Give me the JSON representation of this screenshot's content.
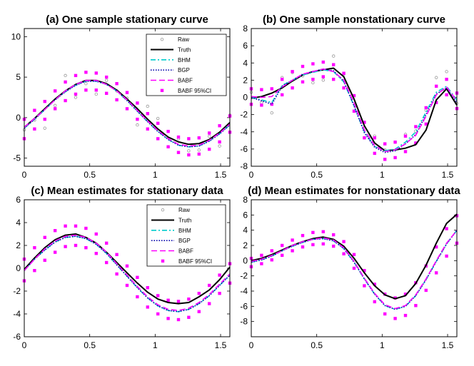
{
  "chart_data": [
    {
      "type": "line",
      "title": "(a) One sample stationary curve",
      "xlabel": "",
      "ylabel": "",
      "xlim": [
        0,
        1.5708
      ],
      "ylim": [
        -6,
        11
      ],
      "xticks": [
        0,
        0.5,
        1,
        1.5
      ],
      "xtick_labels": [
        "0",
        "0.5",
        "1",
        "1.5"
      ],
      "yticks": [
        -5,
        0,
        5,
        10
      ],
      "ytick_labels": [
        "-5",
        "0",
        "5",
        "10"
      ],
      "legend": [
        "Raw",
        "Truth",
        "BHM",
        "BGP",
        "BABF",
        "BABF 95%CI"
      ],
      "x": [
        0,
        0.0785,
        0.157,
        0.2356,
        0.3142,
        0.3927,
        0.4712,
        0.5498,
        0.6283,
        0.7069,
        0.7854,
        0.864,
        0.9425,
        1.021,
        1.0996,
        1.1781,
        1.2566,
        1.3352,
        1.4137,
        1.4923,
        1.5708
      ],
      "series": [
        {
          "name": "Raw",
          "values": [
            -1.5,
            -0.3,
            -1.3,
            1.5,
            5.2,
            2.5,
            4.2,
            2.9,
            4.6,
            3.3,
            2.4,
            -0.9,
            1.4,
            -0.1,
            -3.6,
            -2.6,
            -4.1,
            -4.0,
            -2.3,
            -3.5,
            0.3
          ]
        },
        {
          "name": "Truth",
          "values": [
            -1.2,
            -0.1,
            1.1,
            2.3,
            3.3,
            4.1,
            4.6,
            4.6,
            4.2,
            3.4,
            2.3,
            1.1,
            -0.2,
            -1.4,
            -2.4,
            -3.0,
            -3.3,
            -3.2,
            -2.7,
            -1.8,
            -0.6
          ]
        },
        {
          "name": "BHM",
          "values": [
            -1.3,
            -0.2,
            1.0,
            2.2,
            3.2,
            4.0,
            4.5,
            4.5,
            4.1,
            3.3,
            2.1,
            0.8,
            -0.5,
            -1.7,
            -2.7,
            -3.4,
            -3.6,
            -3.5,
            -2.9,
            -2.0,
            -0.9
          ]
        },
        {
          "name": "BGP",
          "values": [
            -1.3,
            -0.2,
            1.0,
            2.2,
            3.2,
            4.0,
            4.5,
            4.5,
            4.1,
            3.3,
            2.1,
            0.8,
            -0.5,
            -1.7,
            -2.7,
            -3.4,
            -3.6,
            -3.5,
            -2.9,
            -2.0,
            -0.9
          ]
        },
        {
          "name": "BABF",
          "values": [
            -1.2,
            -0.1,
            1.0,
            2.2,
            3.3,
            4.1,
            4.6,
            4.6,
            4.1,
            3.3,
            2.2,
            0.9,
            -0.4,
            -1.6,
            -2.6,
            -3.3,
            -3.5,
            -3.4,
            -2.8,
            -1.9,
            -0.8
          ]
        },
        {
          "name": "BABF 95%CI upper",
          "values": [
            -0.2,
            0.9,
            2.0,
            3.3,
            4.4,
            5.2,
            5.6,
            5.5,
            5.0,
            4.2,
            3.1,
            1.8,
            0.5,
            -0.7,
            -1.7,
            -2.4,
            -2.6,
            -2.5,
            -1.9,
            -1.0,
            0.2
          ]
        },
        {
          "name": "BABF 95%CI lower",
          "values": [
            -2.6,
            -1.4,
            -0.2,
            1.1,
            2.1,
            2.9,
            3.4,
            3.4,
            3.0,
            2.2,
            1.1,
            -0.2,
            -1.4,
            -2.6,
            -3.6,
            -4.3,
            -4.6,
            -4.5,
            -3.9,
            -3.0,
            -1.8
          ]
        }
      ]
    },
    {
      "type": "line",
      "title": "(b) One sample nonstationary curve",
      "xlabel": "",
      "ylabel": "",
      "xlim": [
        0,
        1.5708
      ],
      "ylim": [
        -8,
        8
      ],
      "xticks": [
        0,
        0.5,
        1,
        1.5
      ],
      "xtick_labels": [
        "0",
        "0.5",
        "1",
        "1.5"
      ],
      "yticks": [
        -8,
        -6,
        -4,
        -2,
        0,
        2,
        4,
        6,
        8
      ],
      "ytick_labels": [
        "-8",
        "-6",
        "-4",
        "-2",
        "0",
        "2",
        "4",
        "6",
        "8"
      ],
      "legend": [],
      "x": [
        0,
        0.0785,
        0.157,
        0.2356,
        0.3142,
        0.3927,
        0.4712,
        0.5498,
        0.6283,
        0.7069,
        0.7854,
        0.864,
        0.9425,
        1.021,
        1.0996,
        1.1781,
        1.2566,
        1.3352,
        1.4137,
        1.4923,
        1.5708
      ],
      "series": [
        {
          "name": "Raw",
          "values": [
            0.6,
            -0.6,
            -1.8,
            2.3,
            2.9,
            2.5,
            1.7,
            2.0,
            4.8,
            2.7,
            0.2,
            -4.7,
            -4.5,
            -6.1,
            -5.2,
            -4.3,
            -3.9,
            -1.5,
            2.3,
            3.0,
            -0.7
          ]
        },
        {
          "name": "Truth",
          "values": [
            -0.1,
            0.1,
            0.5,
            1.1,
            1.9,
            2.6,
            3.0,
            3.2,
            3.4,
            2.4,
            -0.2,
            -3.3,
            -5.3,
            -6.2,
            -6.1,
            -5.9,
            -5.5,
            -3.8,
            -0.3,
            1.0,
            -0.9
          ]
        },
        {
          "name": "BHM",
          "values": [
            0.0,
            -0.3,
            -0.6,
            1.4,
            2.0,
            2.6,
            2.9,
            3.2,
            3.0,
            1.8,
            -1.0,
            -4.0,
            -5.7,
            -6.2,
            -6.0,
            -5.2,
            -4.0,
            -1.7,
            0.6,
            1.3,
            -0.3
          ]
        },
        {
          "name": "BGP",
          "values": [
            0.0,
            -0.4,
            -0.8,
            1.3,
            2.0,
            2.7,
            3.0,
            3.3,
            3.1,
            1.9,
            -1.0,
            -4.1,
            -5.8,
            -6.4,
            -6.2,
            -5.4,
            -4.3,
            -2.0,
            0.4,
            1.1,
            -0.6
          ]
        },
        {
          "name": "BABF",
          "values": [
            0.1,
            0.0,
            0.1,
            1.2,
            2.0,
            2.7,
            3.0,
            3.3,
            3.0,
            2.0,
            -0.7,
            -3.8,
            -5.6,
            -6.3,
            -6.1,
            -5.4,
            -4.4,
            -2.2,
            0.3,
            1.2,
            -0.4
          ]
        },
        {
          "name": "BABF 95%CI upper",
          "values": [
            1.0,
            0.9,
            1.0,
            2.1,
            3.0,
            3.6,
            3.9,
            4.1,
            3.8,
            2.8,
            0.2,
            -2.9,
            -4.7,
            -5.4,
            -5.2,
            -4.5,
            -3.4,
            -1.2,
            1.3,
            2.1,
            0.5
          ]
        },
        {
          "name": "BABF 95%CI lower",
          "values": [
            -0.8,
            -0.9,
            -0.8,
            0.3,
            1.1,
            1.8,
            2.1,
            2.4,
            2.1,
            1.1,
            -1.6,
            -4.7,
            -6.5,
            -7.2,
            -7.0,
            -6.3,
            -5.3,
            -3.1,
            -0.6,
            0.3,
            -1.3
          ]
        }
      ]
    },
    {
      "type": "line",
      "title": "(c) Mean estimates for stationary data",
      "xlabel": "",
      "ylabel": "",
      "xlim": [
        0,
        1.5708
      ],
      "ylim": [
        -6,
        6
      ],
      "xticks": [
        0,
        0.5,
        1,
        1.5
      ],
      "xtick_labels": [
        "0",
        "0.5",
        "1",
        "1.5"
      ],
      "yticks": [
        -6,
        -4,
        -2,
        0,
        2,
        4,
        6
      ],
      "ytick_labels": [
        "-6",
        "-4",
        "-2",
        "0",
        "2",
        "4",
        "6"
      ],
      "legend": [
        "Raw",
        "Truth",
        "BHM",
        "BGP",
        "BABF",
        "BABF 95%CI"
      ],
      "x": [
        0,
        0.0785,
        0.157,
        0.2356,
        0.3142,
        0.3927,
        0.4712,
        0.5498,
        0.6283,
        0.7069,
        0.7854,
        0.864,
        0.9425,
        1.021,
        1.0996,
        1.1781,
        1.2566,
        1.3352,
        1.4137,
        1.4923,
        1.5708
      ],
      "series": [
        {
          "name": "Truth",
          "values": [
            -0.1,
            0.9,
            1.8,
            2.5,
            2.9,
            3.0,
            2.7,
            2.2,
            1.4,
            0.5,
            -0.4,
            -1.3,
            -2.1,
            -2.7,
            -3.0,
            -3.1,
            -3.0,
            -2.5,
            -1.9,
            -1.0,
            0.1
          ]
        },
        {
          "name": "BHM",
          "values": [
            -0.2,
            0.8,
            1.6,
            2.3,
            2.7,
            2.8,
            2.6,
            2.1,
            1.3,
            0.3,
            -0.7,
            -1.7,
            -2.6,
            -3.3,
            -3.7,
            -3.8,
            -3.6,
            -3.1,
            -2.4,
            -1.5,
            -0.6
          ]
        },
        {
          "name": "BGP",
          "values": [
            -0.2,
            0.8,
            1.6,
            2.3,
            2.7,
            2.8,
            2.6,
            2.1,
            1.3,
            0.3,
            -0.7,
            -1.7,
            -2.6,
            -3.3,
            -3.7,
            -3.8,
            -3.6,
            -3.1,
            -2.4,
            -1.5,
            -0.6
          ]
        },
        {
          "name": "BABF",
          "values": [
            -0.2,
            0.8,
            1.7,
            2.4,
            2.8,
            2.9,
            2.7,
            2.2,
            1.4,
            0.4,
            -0.6,
            -1.6,
            -2.5,
            -3.2,
            -3.6,
            -3.7,
            -3.5,
            -3.0,
            -2.3,
            -1.4,
            -0.5
          ]
        },
        {
          "name": "BABF 95%CI upper",
          "values": [
            0.8,
            1.8,
            2.7,
            3.3,
            3.7,
            3.7,
            3.5,
            3.0,
            2.2,
            1.2,
            0.2,
            -0.8,
            -1.7,
            -2.4,
            -2.8,
            -2.9,
            -2.7,
            -2.2,
            -1.5,
            -0.6,
            0.4
          ]
        },
        {
          "name": "BABF 95%CI lower",
          "values": [
            -1.1,
            -0.2,
            0.7,
            1.4,
            1.9,
            2.0,
            1.8,
            1.3,
            0.5,
            -0.5,
            -1.5,
            -2.5,
            -3.4,
            -4.0,
            -4.4,
            -4.5,
            -4.3,
            -3.8,
            -3.1,
            -2.2,
            -1.3
          ]
        }
      ]
    },
    {
      "type": "line",
      "title": "(d) Mean estimates for nonstationary data",
      "xlabel": "",
      "ylabel": "",
      "xlim": [
        0,
        1.5708
      ],
      "ylim": [
        -10,
        8
      ],
      "xticks": [
        0,
        0.5,
        1,
        1.5
      ],
      "xtick_labels": [
        "0",
        "0.5",
        "1",
        "1.5"
      ],
      "yticks": [
        -8,
        -6,
        -4,
        -2,
        0,
        2,
        4,
        6,
        8
      ],
      "ytick_labels": [
        "-8",
        "-6",
        "-4",
        "-2",
        "0",
        "2",
        "4",
        "6",
        "8"
      ],
      "legend": [],
      "x": [
        0,
        0.0785,
        0.157,
        0.2356,
        0.3142,
        0.3927,
        0.4712,
        0.5498,
        0.6283,
        0.7069,
        0.7854,
        0.864,
        0.9425,
        1.021,
        1.0996,
        1.1781,
        1.2566,
        1.3352,
        1.4137,
        1.4923,
        1.5708
      ],
      "series": [
        {
          "name": "Truth",
          "values": [
            0.0,
            0.3,
            0.8,
            1.4,
            2.0,
            2.5,
            2.9,
            3.1,
            2.8,
            1.9,
            0.3,
            -1.6,
            -3.3,
            -4.5,
            -5.0,
            -4.6,
            -3.0,
            -0.6,
            2.3,
            4.9,
            6.1
          ]
        },
        {
          "name": "BHM",
          "values": [
            -0.2,
            0.1,
            0.6,
            1.3,
            1.9,
            2.4,
            2.8,
            2.9,
            2.6,
            1.6,
            -0.2,
            -2.4,
            -4.4,
            -5.9,
            -6.4,
            -6.0,
            -4.6,
            -2.5,
            -0.1,
            2.2,
            4.0
          ]
        },
        {
          "name": "BGP",
          "values": [
            -0.2,
            0.1,
            0.6,
            1.3,
            1.9,
            2.4,
            2.8,
            2.9,
            2.6,
            1.6,
            -0.2,
            -2.4,
            -4.4,
            -5.9,
            -6.4,
            -6.0,
            -4.6,
            -2.5,
            -0.1,
            2.2,
            4.0
          ]
        },
        {
          "name": "BABF",
          "values": [
            -0.1,
            0.2,
            0.7,
            1.3,
            2.0,
            2.5,
            2.8,
            3.0,
            2.7,
            1.7,
            -0.1,
            -2.3,
            -4.3,
            -5.8,
            -6.3,
            -5.9,
            -4.5,
            -2.4,
            0.0,
            2.3,
            4.0
          ]
        },
        {
          "name": "BABF 95%CI upper",
          "values": [
            0.3,
            0.7,
            1.3,
            2.0,
            2.7,
            3.3,
            3.7,
            3.8,
            3.4,
            2.5,
            0.8,
            -1.3,
            -3.1,
            -4.4,
            -4.9,
            -4.4,
            -2.9,
            -0.7,
            1.8,
            4.2,
            5.9
          ]
        },
        {
          "name": "BABF 95%CI lower",
          "values": [
            -0.8,
            -0.4,
            0.1,
            0.7,
            1.3,
            1.8,
            2.1,
            2.2,
            1.9,
            0.9,
            -1.0,
            -3.3,
            -5.4,
            -7.0,
            -7.6,
            -7.2,
            -5.9,
            -3.9,
            -1.6,
            0.6,
            2.3
          ]
        }
      ]
    }
  ],
  "colors": {
    "raw": "#999999",
    "truth": "#000000",
    "bhm": "#00cccc",
    "bgp": "#0000aa",
    "babf": "#ff00ff",
    "ci": "#ff00ff"
  }
}
